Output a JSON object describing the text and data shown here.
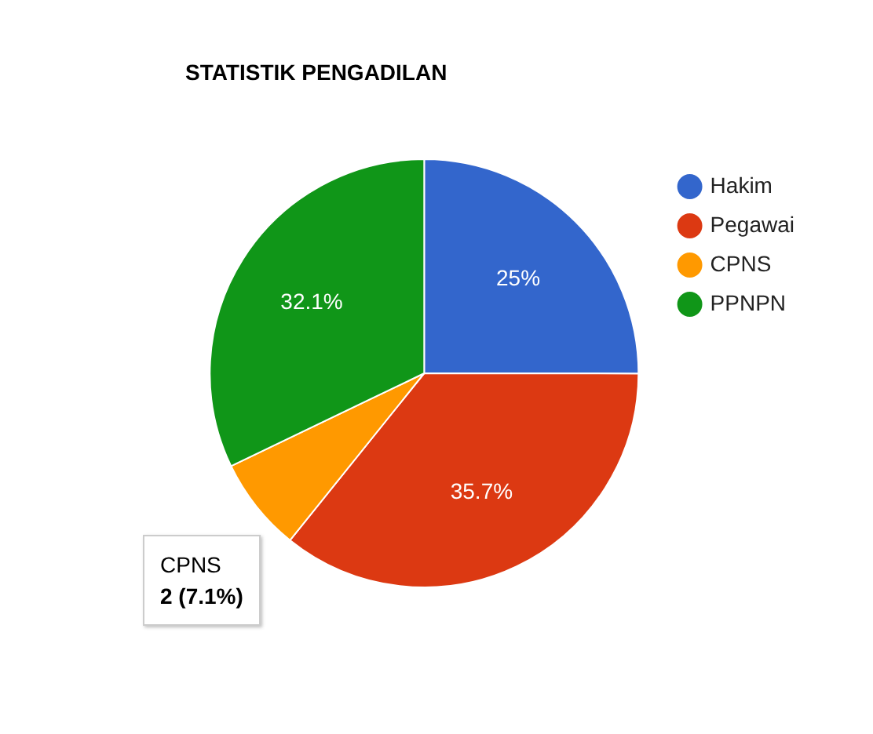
{
  "chart_data": {
    "type": "pie",
    "title": "STATISTIK PENGADILAN",
    "categories": [
      "Hakim",
      "Pegawai",
      "CPNS",
      "PPNPN"
    ],
    "values": [
      25,
      35.7,
      7.1,
      32.1
    ],
    "colors": [
      "#3366cc",
      "#dc3912",
      "#ff9900",
      "#109618"
    ],
    "value_labels": [
      "25%",
      "35.7%",
      null,
      "32.1%"
    ],
    "legend": "top right",
    "annotations": [
      "CPNS",
      "2 (7.1%)"
    ]
  }
}
